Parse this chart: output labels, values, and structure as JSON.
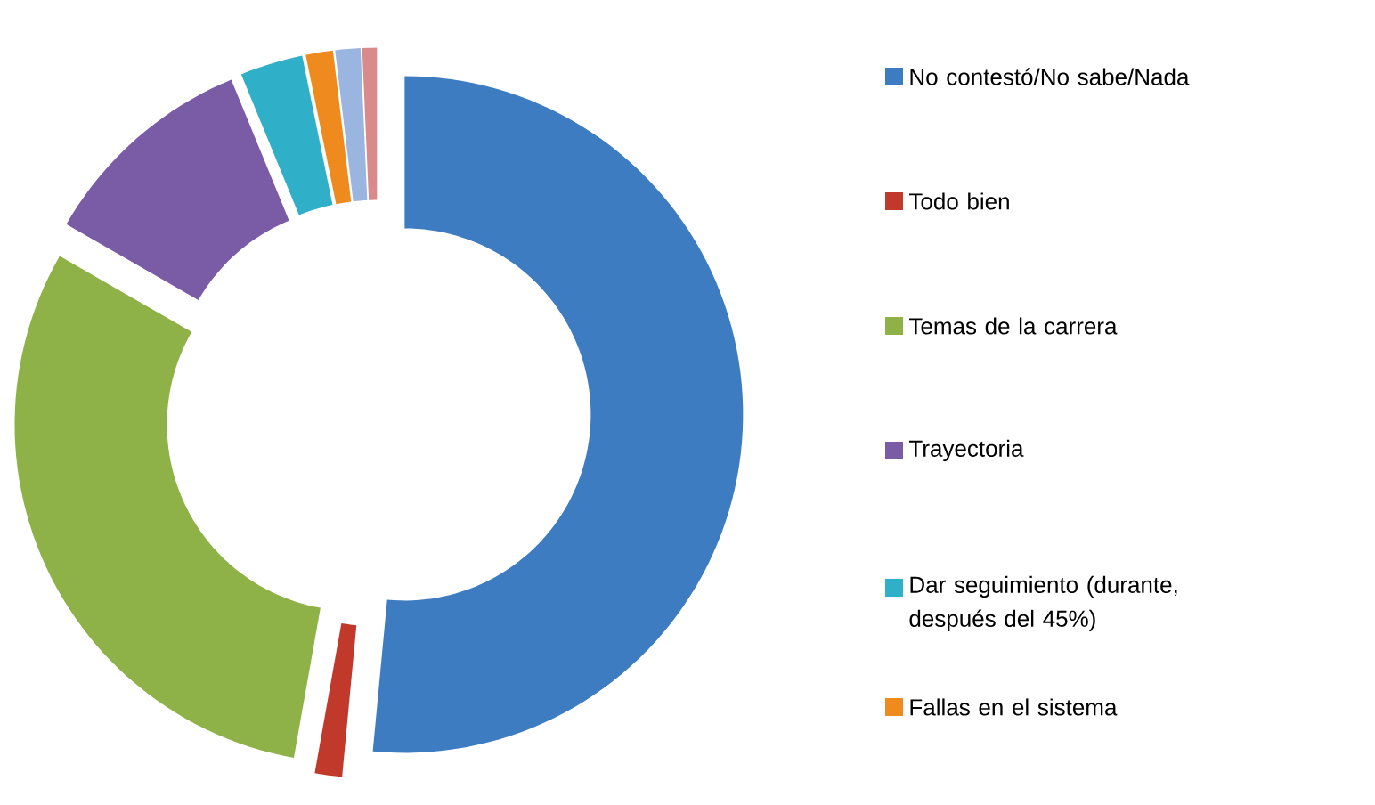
{
  "chart_data": {
    "type": "donut",
    "categories": [
      "No contestó/No sabe/Nada",
      "Todo bien",
      "Temas de la carrera",
      "Trayectoria",
      "Dar seguimiento (durante, después del 45%)",
      "Fallas en el sistema",
      null,
      null
    ],
    "values": [
      51.5,
      1.3,
      30.5,
      10.5,
      3,
      1.3,
      1.2,
      0.7
    ],
    "colors": [
      "#3d7cc0",
      "#c0392b",
      "#8fb248",
      "#7a5ba6",
      "#30b0c8",
      "#ef8a1e",
      "#9ab5e0",
      "#d98a8a"
    ],
    "legend": "right"
  }
}
